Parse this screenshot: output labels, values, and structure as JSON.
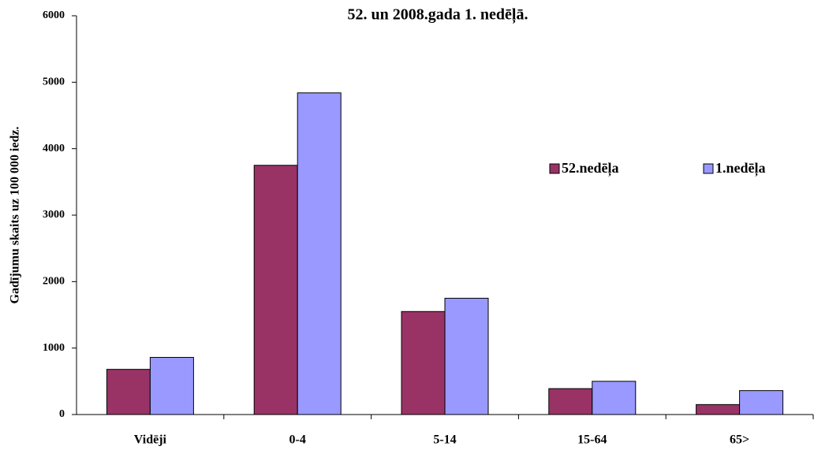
{
  "chart_data": {
    "type": "bar",
    "title": "52. un 2008.gada 1. nedēļā.",
    "y_label": "Gadījumu skaits uz 100 000 iedz.",
    "categories": [
      "Vidēji",
      "0-4",
      "5-14",
      "15-64",
      "65>"
    ],
    "series": [
      {
        "name": "52.nedēļa",
        "color": "#993366",
        "values": [
          680,
          3750,
          1550,
          390,
          150
        ]
      },
      {
        "name": "1.nedēļa",
        "color": "#9999ff",
        "values": [
          860,
          4840,
          1750,
          500,
          360
        ]
      }
    ],
    "ylim": [
      0,
      6000
    ],
    "yticks": [
      0,
      1000,
      2000,
      3000,
      4000,
      5000,
      6000
    ],
    "legend": "right"
  }
}
